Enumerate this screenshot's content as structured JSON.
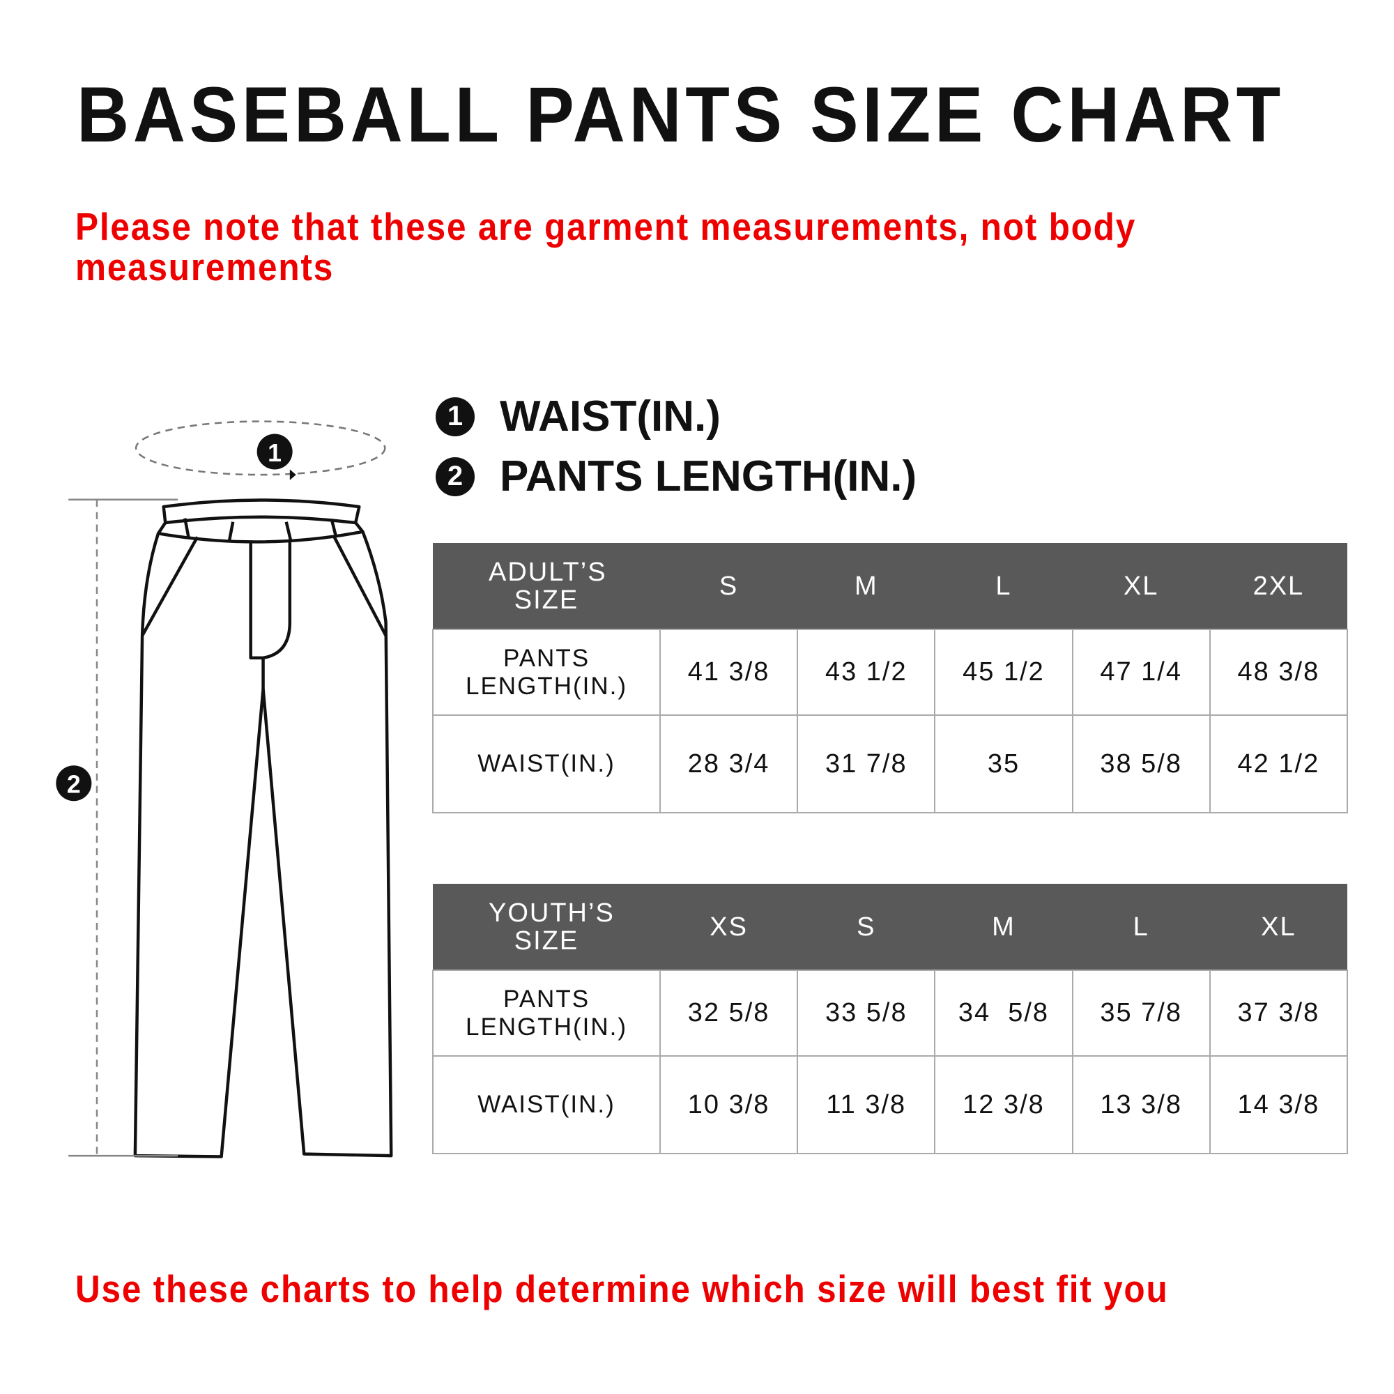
{
  "title": "BASEBALL PANTS SIZE CHART",
  "note_top": "Please note that these are garment measurements, not body measurements",
  "note_bottom": "Use these charts to help determine which size will best fit you",
  "legend": [
    {
      "num": "1",
      "label": "WAIST(IN.)"
    },
    {
      "num": "2",
      "label": "PANTS LENGTH(IN.)"
    }
  ],
  "colors": {
    "header_bg": "#595959",
    "note": "#ee0000"
  },
  "adult": {
    "header": [
      "ADULT’S SIZE",
      "S",
      "M",
      "L",
      "XL",
      "2XL"
    ],
    "rows": [
      {
        "label": "PANTS LENGTH(IN.)",
        "values": [
          "41 3/8",
          "43 1/2",
          "45 1/2",
          "47 1/4",
          "48 3/8"
        ]
      },
      {
        "label": "WAIST(IN.)",
        "values": [
          "28 3/4",
          "31 7/8",
          "35",
          "38 5/8",
          "42 1/2"
        ]
      }
    ]
  },
  "youth": {
    "header": [
      "YOUTH’S SIZE",
      "XS",
      "S",
      "M",
      "L",
      "XL"
    ],
    "rows": [
      {
        "label": "PANTS LENGTH(IN.)",
        "values": [
          "32 5/8",
          "33 5/8",
          "34  5/8",
          "35 7/8",
          "37 3/8"
        ]
      },
      {
        "label": "WAIST(IN.)",
        "values": [
          "10 3/8",
          "11 3/8",
          "12 3/8",
          "13 3/8",
          "14 3/8"
        ]
      }
    ]
  }
}
